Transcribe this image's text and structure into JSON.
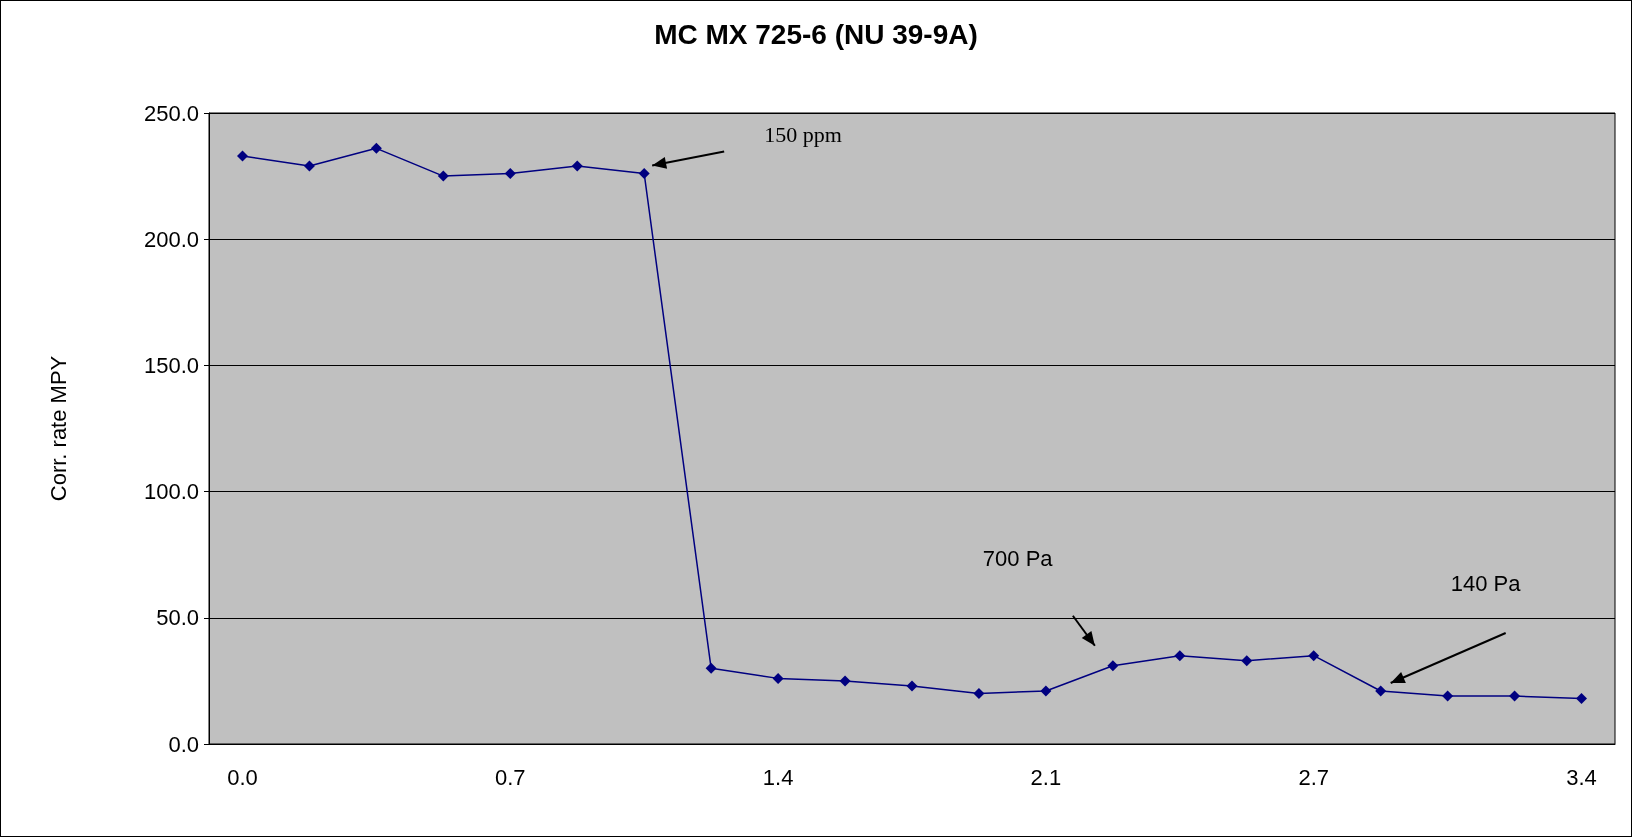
{
  "chart_data": {
    "type": "line",
    "title": "MC MX 725-6 (NU 39-9A)",
    "ylabel": "Corr. rate MPY",
    "categories": [
      "0.0",
      null,
      null,
      null,
      "0.7",
      null,
      null,
      null,
      "1.4",
      null,
      null,
      null,
      "2.1",
      null,
      null,
      null,
      "2.7",
      null,
      null,
      null,
      "3.4"
    ],
    "series": [
      {
        "color": "#000080",
        "values": [
          233,
          229,
          236,
          225,
          226,
          229,
          226,
          30,
          26,
          25,
          23,
          20,
          21,
          31,
          35,
          33,
          35,
          21,
          19,
          19,
          18
        ]
      }
    ],
    "ylim": [
      0,
      250
    ],
    "yticks": [
      {
        "value": 0,
        "label": "0.0"
      },
      {
        "value": 50,
        "label": "50.0"
      },
      {
        "value": 100,
        "label": "100.0"
      },
      {
        "value": 150,
        "label": "150.0"
      },
      {
        "value": 200,
        "label": "200.0"
      },
      {
        "value": 250,
        "label": "250.0"
      }
    ],
    "grid": "y",
    "marker": "diamond",
    "line_style": "solid",
    "annotations": [
      "150 ppm",
      "700 Pa",
      "140 Pa"
    ]
  }
}
